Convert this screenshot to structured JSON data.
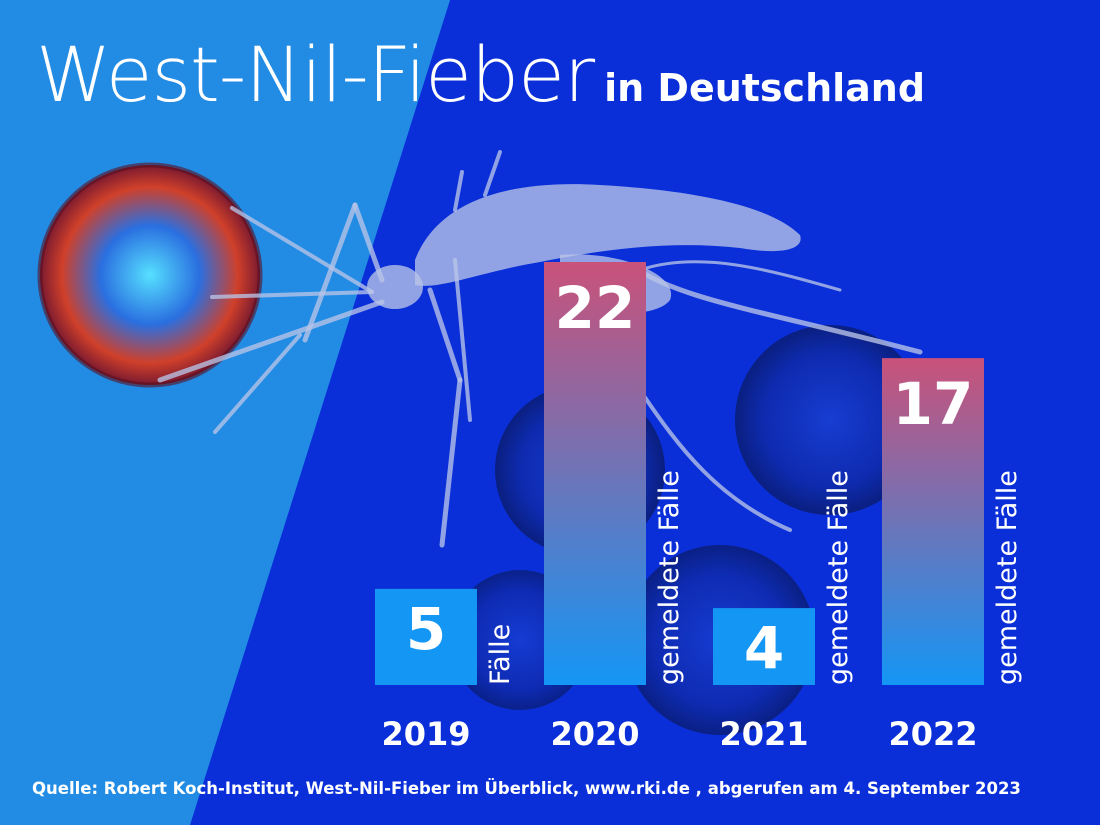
{
  "title": {
    "main": "West-Nil-Fieber",
    "sub": "in Deutschland"
  },
  "source": "Quelle: Robert Koch-Institut, West-Nil-Fieber im Überblick, www.rki.de , abgerufen am 4. September 2023",
  "colors": {
    "bar_top": "#c9527a",
    "bar_bottom": "#1496f5",
    "background_left": "#1a86e0",
    "background_right": "#0a2fd8",
    "text": "#ffffff"
  },
  "chart_data": {
    "type": "bar",
    "categories": [
      "2019",
      "2020",
      "2021",
      "2022"
    ],
    "values": [
      5,
      22,
      4,
      17
    ],
    "value_labels": [
      "5",
      "22",
      "4",
      "17"
    ],
    "unit_labels": [
      "Fälle",
      "gemeldete Fälle",
      "gemeldete Fälle",
      "gemeldete Fälle"
    ],
    "title": "West-Nil-Fieber in Deutschland",
    "xlabel": "",
    "ylabel": "",
    "ylim": [
      0,
      22
    ],
    "grid": false,
    "legend": "none"
  }
}
